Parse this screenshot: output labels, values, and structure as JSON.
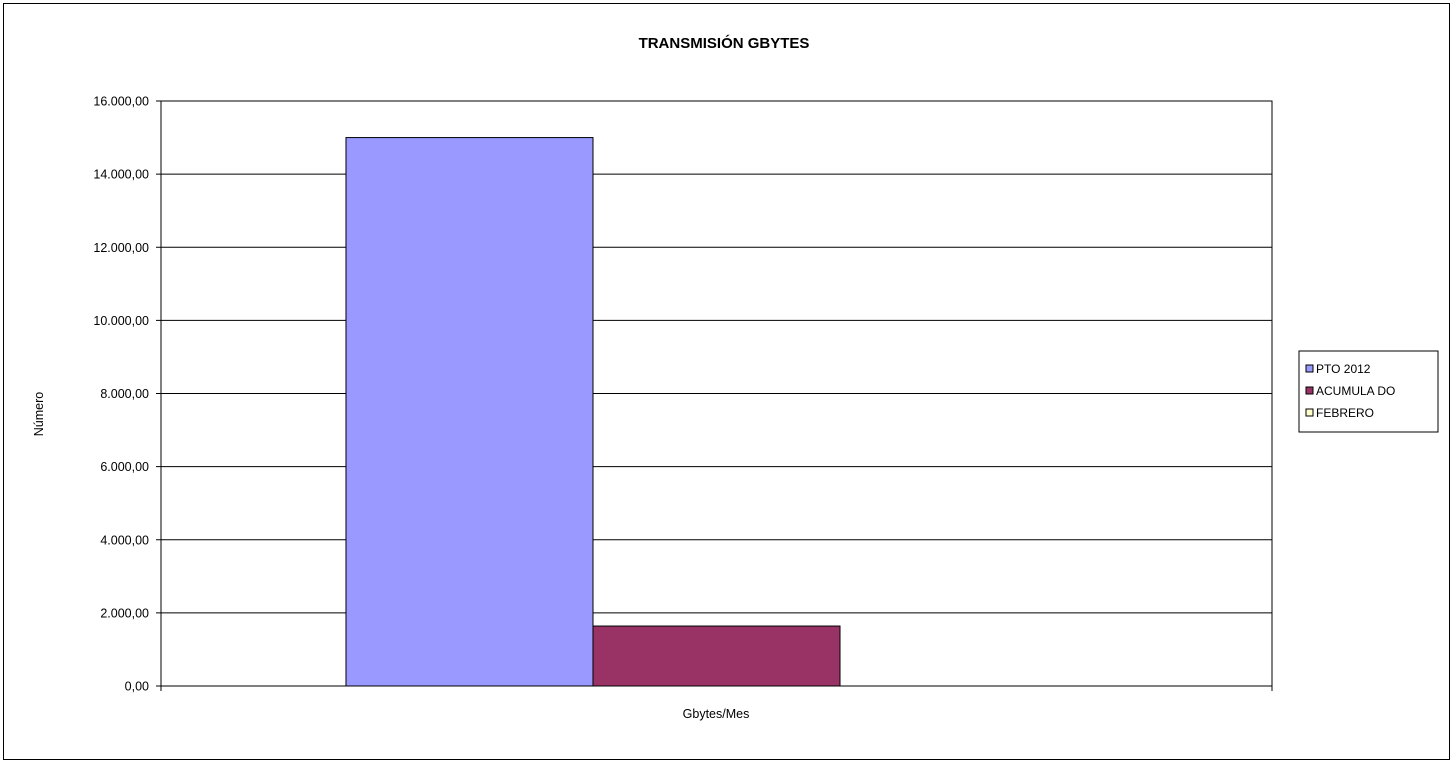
{
  "chart_data": {
    "type": "bar",
    "title": "TRANSMISIÓN GBYTES",
    "xlabel": "Gbytes/Mes",
    "ylabel": "Número",
    "categories": [
      ""
    ],
    "ylim": [
      0,
      16000
    ],
    "yticks": [
      0,
      2000,
      4000,
      6000,
      8000,
      10000,
      12000,
      14000,
      16000
    ],
    "ytick_labels": [
      "0,00",
      "2.000,00",
      "4.000,00",
      "6.000,00",
      "8.000,00",
      "10.000,00",
      "12.000,00",
      "14.000,00",
      "16.000,00"
    ],
    "grid": true,
    "legend_position": "right",
    "series": [
      {
        "name": "PTO  2012",
        "values": [
          15000
        ],
        "color": "#9999ff"
      },
      {
        "name": "ACUMULA DO",
        "values": [
          1640
        ],
        "color": "#993366"
      },
      {
        "name": "FEBRERO",
        "values": [
          0
        ],
        "color": "#ffffcc"
      }
    ]
  }
}
